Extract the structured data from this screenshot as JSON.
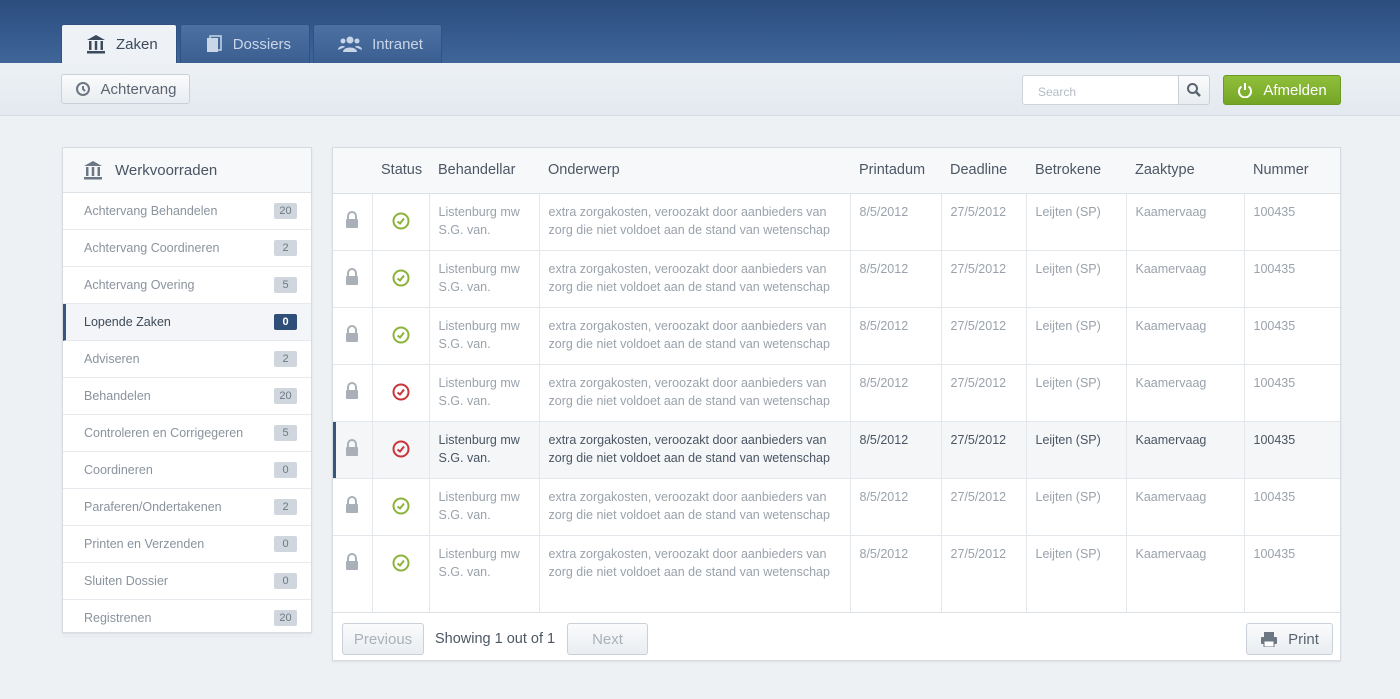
{
  "tabs": [
    "Zaken",
    "Dossiers",
    "Intranet"
  ],
  "active_tab": 0,
  "toolbar": {
    "back_button": "Achtervang",
    "search_placeholder": "Search",
    "logout_button": "Afmelden"
  },
  "sidebar": {
    "title": "Werkvoorraden",
    "active_item": 3,
    "items": [
      {
        "label": "Achtervang Behandelen",
        "count": 20
      },
      {
        "label": "Achtervang Coordineren",
        "count": 2
      },
      {
        "label": "Achtervang Overing",
        "count": 5
      },
      {
        "label": "Lopende Zaken",
        "count": 0
      },
      {
        "label": "Adviseren",
        "count": 2
      },
      {
        "label": "Behandelen",
        "count": 20
      },
      {
        "label": "Controleren en Corrigegeren",
        "count": 5
      },
      {
        "label": "Coordineren",
        "count": 0
      },
      {
        "label": "Paraferen/Ondertakenen",
        "count": 2
      },
      {
        "label": "Printen en Verzenden",
        "count": 0
      },
      {
        "label": "Sluiten Dossier",
        "count": 0
      },
      {
        "label": "Registrenen",
        "count": 20
      }
    ]
  },
  "table": {
    "columns": [
      "Status",
      "Behandellar",
      "Onderwerp",
      "Printadum",
      "Deadline",
      "Betrokene",
      "Zaaktype",
      "Nummer"
    ],
    "selected_row": 4,
    "rows": [
      {
        "status_color": "#8cb33a",
        "cells": [
          "Listenburg mw S.G. van.",
          "extra zorgakosten, veroozakt door aanbieders van zorg die niet voldoet aan de stand van wetenschap",
          "8/5/2012",
          "27/5/2012",
          "Leijten (SP)",
          "Kaamervaag",
          100435
        ]
      },
      {
        "status_color": "#8cb33a",
        "cells": [
          "Listenburg mw S.G. van.",
          "extra zorgakosten, veroozakt door aanbieders van zorg die niet voldoet aan de stand van wetenschap",
          "8/5/2012",
          "27/5/2012",
          "Leijten (SP)",
          "Kaamervaag",
          100435
        ]
      },
      {
        "status_color": "#8cb33a",
        "cells": [
          "Listenburg mw S.G. van.",
          "extra zorgakosten, veroozakt door aanbieders van zorg die niet voldoet aan de stand van wetenschap",
          "8/5/2012",
          "27/5/2012",
          "Leijten (SP)",
          "Kaamervaag",
          100435
        ]
      },
      {
        "status_color": "#c8363a",
        "cells": [
          "Listenburg mw S.G. van.",
          "extra zorgakosten, veroozakt door aanbieders van zorg die niet voldoet aan de stand van wetenschap",
          "8/5/2012",
          "27/5/2012",
          "Leijten (SP)",
          "Kaamervaag",
          100435
        ]
      },
      {
        "status_color": "#c8363a",
        "cells": [
          "Listenburg mw S.G. van.",
          "extra zorgakosten, veroozakt door aanbieders van zorg die niet voldoet aan de stand van wetenschap",
          "8/5/2012",
          "27/5/2012",
          "Leijten (SP)",
          "Kaamervaag",
          100435
        ]
      },
      {
        "status_color": "#8cb33a",
        "cells": [
          "Listenburg mw S.G. van.",
          "extra zorgakosten, veroozakt door aanbieders van zorg die niet voldoet aan de stand van wetenschap",
          "8/5/2012",
          "27/5/2012",
          "Leijten (SP)",
          "Kaamervaag",
          100435
        ]
      },
      {
        "status_color": "#8cb33a",
        "cells": [
          "Listenburg mw S.G. van.",
          "extra zorgakosten, veroozakt door aanbieders van zorg die niet voldoet aan de stand van wetenschap",
          "8/5/2012",
          "27/5/2012",
          "Leijten (SP)",
          "Kaamervaag",
          100435
        ]
      }
    ]
  },
  "pager": {
    "previous": "Previous",
    "status": "Showing 1 out of 1",
    "next": "Next",
    "print": "Print"
  }
}
